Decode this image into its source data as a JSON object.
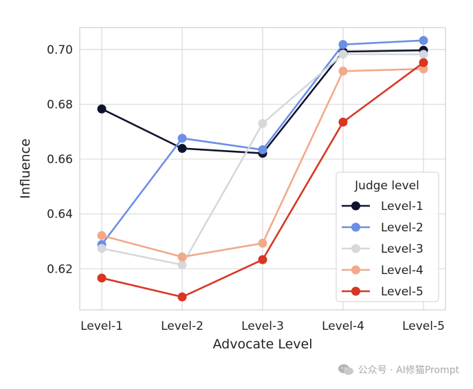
{
  "chart_data": {
    "type": "line",
    "xlabel": "Advocate Level",
    "ylabel": "Influence",
    "categories": [
      "Level-1",
      "Level-2",
      "Level-3",
      "Level-4",
      "Level-5"
    ],
    "ylim": [
      0.605,
      0.708
    ],
    "yticks": [
      0.62,
      0.64,
      0.66,
      0.68,
      0.7
    ],
    "ytick_labels": [
      "0.62",
      "0.64",
      "0.66",
      "0.68",
      "0.70"
    ],
    "grid": true,
    "legend": {
      "title": "Judge level",
      "placement": "lower-right"
    },
    "series": [
      {
        "name": "Level-1",
        "color": "#0f142e",
        "values": [
          0.6783,
          0.6639,
          0.6621,
          0.6992,
          0.6997
        ]
      },
      {
        "name": "Level-2",
        "color": "#6b8ee6",
        "values": [
          0.6288,
          0.6676,
          0.6634,
          0.7018,
          0.7033
        ]
      },
      {
        "name": "Level-3",
        "color": "#d6d8db",
        "values": [
          0.6274,
          0.6214,
          0.673,
          0.6983,
          0.6982
        ]
      },
      {
        "name": "Level-4",
        "color": "#f2a98a",
        "values": [
          0.6321,
          0.6243,
          0.6293,
          0.6921,
          0.6929
        ]
      },
      {
        "name": "Level-5",
        "color": "#d93523",
        "values": [
          0.6166,
          0.6097,
          0.6233,
          0.6735,
          0.6952
        ]
      }
    ]
  },
  "watermark": {
    "text": "公众号 · AI修猫Prompt",
    "icon": "wechat-icon"
  }
}
